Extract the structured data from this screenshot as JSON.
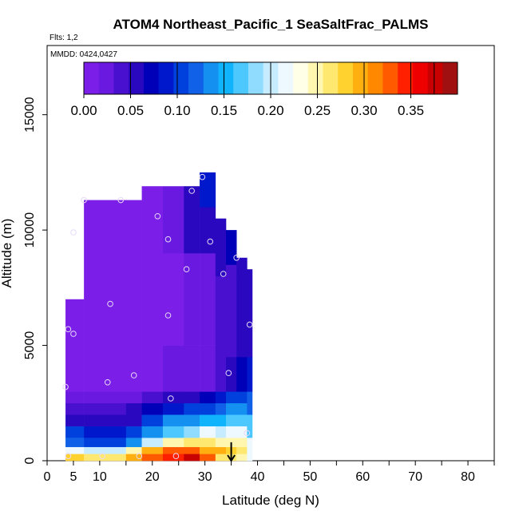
{
  "chart_data": {
    "type": "heatmap",
    "title": "ATOM4 Northeast_Pacific_1 SeaSaltFrac_PALMS",
    "flights_label": "Flts: 1,2",
    "dates_label": "MMDD: 0424,0427",
    "xlabel": "Latitude (deg N)",
    "ylabel": "Altitude (m)",
    "xlim": [
      0,
      85
    ],
    "ylim": [
      0,
      18000
    ],
    "x_ticks": [
      0,
      5,
      10,
      20,
      30,
      40,
      50,
      60,
      70,
      80
    ],
    "y_ticks": [
      0,
      5000,
      10000,
      15000
    ],
    "x_minor_ticks": [
      15,
      25,
      35,
      45,
      55,
      65,
      75,
      85
    ],
    "grid": false,
    "colorbar": {
      "position": "top",
      "ticks": [
        0.0,
        0.05,
        0.1,
        0.15,
        0.2,
        0.25,
        0.3,
        0.35
      ],
      "tick_labels": [
        "0.00",
        "0.05",
        "0.10",
        "0.15",
        "0.20",
        "0.25",
        "0.30",
        "0.35"
      ],
      "range": [
        0.0,
        0.4
      ],
      "colors": [
        "#7b1ee8",
        "#6a1ae0",
        "#4a10d0",
        "#2a08c0",
        "#0000b8",
        "#0018cc",
        "#0040dc",
        "#1060e8",
        "#1490f0",
        "#10b4fc",
        "#4cc8ff",
        "#90dcff",
        "#c8ecff",
        "#eef8ff",
        "#ffffe8",
        "#fff6b0",
        "#ffe870",
        "#ffd230",
        "#ffb010",
        "#ff8800",
        "#ff5a00",
        "#ff2000",
        "#ee0000",
        "#c80000",
        "#a01010"
      ]
    },
    "columns": [
      {
        "x0": 3.5,
        "x1": 7,
        "cells": [
          [
            0,
            300,
            0.28
          ],
          [
            300,
            600,
            0.22
          ],
          [
            600,
            1000,
            0.12
          ],
          [
            1000,
            1500,
            0.1
          ],
          [
            1500,
            2000,
            0.06
          ],
          [
            2000,
            2500,
            0.04
          ],
          [
            2500,
            3000,
            0.03
          ],
          [
            3000,
            6000,
            0.01
          ],
          [
            6000,
            7000,
            0.0
          ]
        ]
      },
      {
        "x0": 7,
        "x1": 15,
        "cells": [
          [
            0,
            300,
            0.27
          ],
          [
            300,
            600,
            0.2
          ],
          [
            600,
            1000,
            0.11
          ],
          [
            1000,
            1500,
            0.08
          ],
          [
            1500,
            2000,
            0.05
          ],
          [
            2000,
            2500,
            0.04
          ],
          [
            2500,
            3000,
            0.03
          ],
          [
            3000,
            11300,
            0.01
          ]
        ]
      },
      {
        "x0": 15,
        "x1": 18,
        "cells": [
          [
            0,
            300,
            0.3
          ],
          [
            300,
            600,
            0.25
          ],
          [
            600,
            1000,
            0.14
          ],
          [
            1000,
            1500,
            0.1
          ],
          [
            1500,
            2000,
            0.06
          ],
          [
            2000,
            2500,
            0.05
          ],
          [
            2500,
            3000,
            0.03
          ],
          [
            3000,
            11300,
            0.01
          ]
        ]
      },
      {
        "x0": 18,
        "x1": 22,
        "cells": [
          [
            0,
            300,
            0.33
          ],
          [
            300,
            600,
            0.3
          ],
          [
            600,
            1000,
            0.2
          ],
          [
            1000,
            1500,
            0.14
          ],
          [
            1500,
            2000,
            0.1
          ],
          [
            2000,
            2500,
            0.07
          ],
          [
            2500,
            3000,
            0.04
          ],
          [
            3000,
            11900,
            0.015
          ]
        ]
      },
      {
        "x0": 22,
        "x1": 26,
        "cells": [
          [
            0,
            300,
            0.35
          ],
          [
            300,
            600,
            0.32
          ],
          [
            600,
            1000,
            0.24
          ],
          [
            1000,
            1500,
            0.17
          ],
          [
            1500,
            2000,
            0.13
          ],
          [
            2000,
            2500,
            0.09
          ],
          [
            2500,
            3000,
            0.05
          ],
          [
            3000,
            5000,
            0.02
          ],
          [
            5000,
            9000,
            0.015
          ],
          [
            9000,
            11900,
            0.03
          ]
        ]
      },
      {
        "x0": 26,
        "x1": 29,
        "cells": [
          [
            0,
            300,
            0.37
          ],
          [
            300,
            600,
            0.33
          ],
          [
            600,
            1000,
            0.27
          ],
          [
            1000,
            1500,
            0.19
          ],
          [
            1500,
            2000,
            0.14
          ],
          [
            2000,
            2500,
            0.1
          ],
          [
            2500,
            3000,
            0.06
          ],
          [
            3000,
            5000,
            0.025
          ],
          [
            5000,
            9000,
            0.02
          ],
          [
            9000,
            11900,
            0.05
          ]
        ]
      },
      {
        "x0": 29,
        "x1": 32,
        "cells": [
          [
            0,
            300,
            0.33
          ],
          [
            300,
            600,
            0.3
          ],
          [
            600,
            1000,
            0.26
          ],
          [
            1000,
            1500,
            0.21
          ],
          [
            1500,
            2000,
            0.15
          ],
          [
            2000,
            2500,
            0.11
          ],
          [
            2500,
            3000,
            0.07
          ],
          [
            3000,
            5000,
            0.03
          ],
          [
            5000,
            9000,
            0.03
          ],
          [
            9000,
            11000,
            0.06
          ],
          [
            11000,
            12500,
            0.08
          ]
        ]
      },
      {
        "x0": 32,
        "x1": 34,
        "cells": [
          [
            0,
            300,
            0.27
          ],
          [
            300,
            600,
            0.29
          ],
          [
            600,
            1000,
            0.24
          ],
          [
            1000,
            1500,
            0.2
          ],
          [
            1500,
            2000,
            0.15
          ],
          [
            2000,
            2500,
            0.12
          ],
          [
            2500,
            3000,
            0.08
          ],
          [
            3000,
            4500,
            0.04
          ],
          [
            4500,
            8000,
            0.035
          ],
          [
            8000,
            10500,
            0.06
          ]
        ]
      },
      {
        "x0": 34,
        "x1": 36,
        "cells": [
          [
            0,
            300,
            0.26
          ],
          [
            300,
            600,
            0.28
          ],
          [
            600,
            1000,
            0.25
          ],
          [
            1000,
            1500,
            0.21
          ],
          [
            1500,
            2000,
            0.16
          ],
          [
            2000,
            2500,
            0.13
          ],
          [
            2500,
            3000,
            0.1
          ],
          [
            3000,
            4500,
            0.06
          ],
          [
            4500,
            8500,
            0.04
          ],
          [
            8500,
            10000,
            0.07
          ]
        ]
      },
      {
        "x0": 36,
        "x1": 38,
        "cells": [
          [
            0,
            300,
            0.25
          ],
          [
            300,
            600,
            0.27
          ],
          [
            600,
            1000,
            0.25
          ],
          [
            1000,
            1500,
            0.22
          ],
          [
            1500,
            2000,
            0.17
          ],
          [
            2000,
            2500,
            0.14
          ],
          [
            2500,
            3000,
            0.11
          ],
          [
            3000,
            4500,
            0.07
          ],
          [
            4500,
            8000,
            0.05
          ],
          [
            8000,
            8800,
            0.06
          ]
        ]
      },
      {
        "x0": 38,
        "x1": 39,
        "cells": [
          [
            0,
            1000,
            0.22
          ],
          [
            1000,
            2000,
            0.17
          ],
          [
            2000,
            3000,
            0.12
          ],
          [
            3000,
            4500,
            0.08
          ],
          [
            4500,
            8300,
            0.06
          ]
        ]
      }
    ],
    "points": [
      {
        "x": 4,
        "y": 200
      },
      {
        "x": 10.5,
        "y": 200
      },
      {
        "x": 17.5,
        "y": 200
      },
      {
        "x": 24.5,
        "y": 200
      },
      {
        "x": 38,
        "y": 1200
      },
      {
        "x": 23.5,
        "y": 2700
      },
      {
        "x": 11.5,
        "y": 3400
      },
      {
        "x": 3.5,
        "y": 3200
      },
      {
        "x": 16.5,
        "y": 3700
      },
      {
        "x": 34.5,
        "y": 3800
      },
      {
        "x": 4,
        "y": 5700
      },
      {
        "x": 5,
        "y": 5500
      },
      {
        "x": 38.5,
        "y": 5900
      },
      {
        "x": 23,
        "y": 6300
      },
      {
        "x": 12,
        "y": 6800
      },
      {
        "x": 33.5,
        "y": 8100
      },
      {
        "x": 26.5,
        "y": 8300
      },
      {
        "x": 36,
        "y": 8800
      },
      {
        "x": 5,
        "y": 9900
      },
      {
        "x": 23,
        "y": 9600
      },
      {
        "x": 31,
        "y": 9500
      },
      {
        "x": 21,
        "y": 10600
      },
      {
        "x": 7,
        "y": 11300
      },
      {
        "x": 14,
        "y": 11300
      },
      {
        "x": 27.5,
        "y": 11700
      },
      {
        "x": 29.5,
        "y": 12300
      }
    ],
    "arrow": {
      "x": 35,
      "y_from": 800,
      "y_to": 0
    }
  }
}
